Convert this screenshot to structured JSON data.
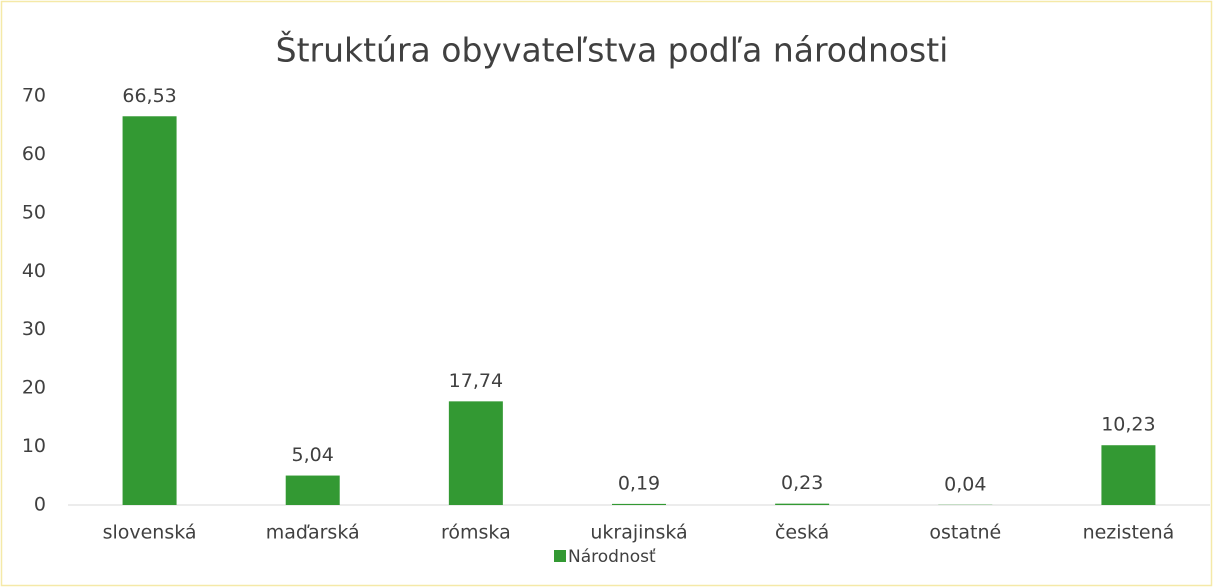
{
  "chart_data": {
    "type": "bar",
    "title": "Štruktúra obyvateľstva podľa národnosti",
    "categories": [
      "slovenská",
      "maďarská",
      "rómska",
      "ukrajinská",
      "česká",
      "ostatné",
      "nezistená"
    ],
    "series": [
      {
        "name": "Národnosť",
        "color": "#339933",
        "values": [
          66.53,
          5.04,
          17.74,
          0.19,
          0.23,
          0.04,
          10.23
        ],
        "value_labels": [
          "66,53",
          "5,04",
          "17,74",
          "0,19",
          "0,23",
          "0,04",
          "10,23"
        ]
      }
    ],
    "ylim": [
      0,
      70
    ],
    "yticks": [
      0,
      10,
      20,
      30,
      40,
      50,
      60,
      70
    ],
    "grid": false,
    "legend": "bottom"
  }
}
